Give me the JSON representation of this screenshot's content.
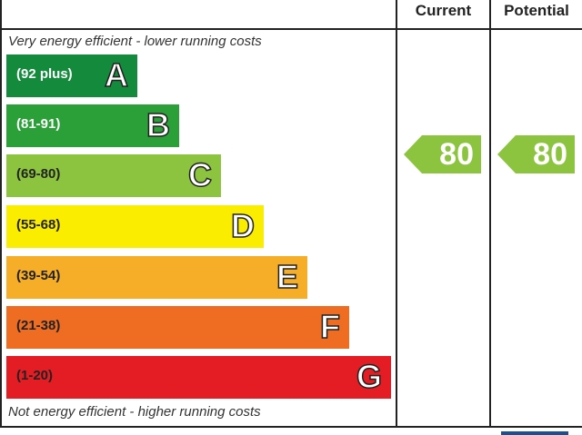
{
  "chart_data": {
    "type": "bar",
    "headers": {
      "current": "Current",
      "potential": "Potential"
    },
    "top_note": "Very energy efficient - lower running costs",
    "bottom_note": "Not energy efficient - higher running costs",
    "bands": [
      {
        "range": "(92 plus)",
        "letter": "A",
        "color": "#138a3c",
        "text_color": "#ffffff"
      },
      {
        "range": "(81-91)",
        "letter": "B",
        "color": "#2ca038",
        "text_color": "#ffffff"
      },
      {
        "range": "(69-80)",
        "letter": "C",
        "color": "#8cc43f",
        "text_color": "#222222"
      },
      {
        "range": "(55-68)",
        "letter": "D",
        "color": "#fbed00",
        "text_color": "#222222"
      },
      {
        "range": "(39-54)",
        "letter": "E",
        "color": "#f6ad28",
        "text_color": "#222222"
      },
      {
        "range": "(21-38)",
        "letter": "F",
        "color": "#ee6d23",
        "text_color": "#222222"
      },
      {
        "range": "(1-20)",
        "letter": "G",
        "color": "#e31d23",
        "text_color": "#222222"
      }
    ],
    "current": {
      "value": 80,
      "band": "C",
      "color": "#8cc43f"
    },
    "potential": {
      "value": 80,
      "band": "C",
      "color": "#8cc43f"
    }
  }
}
